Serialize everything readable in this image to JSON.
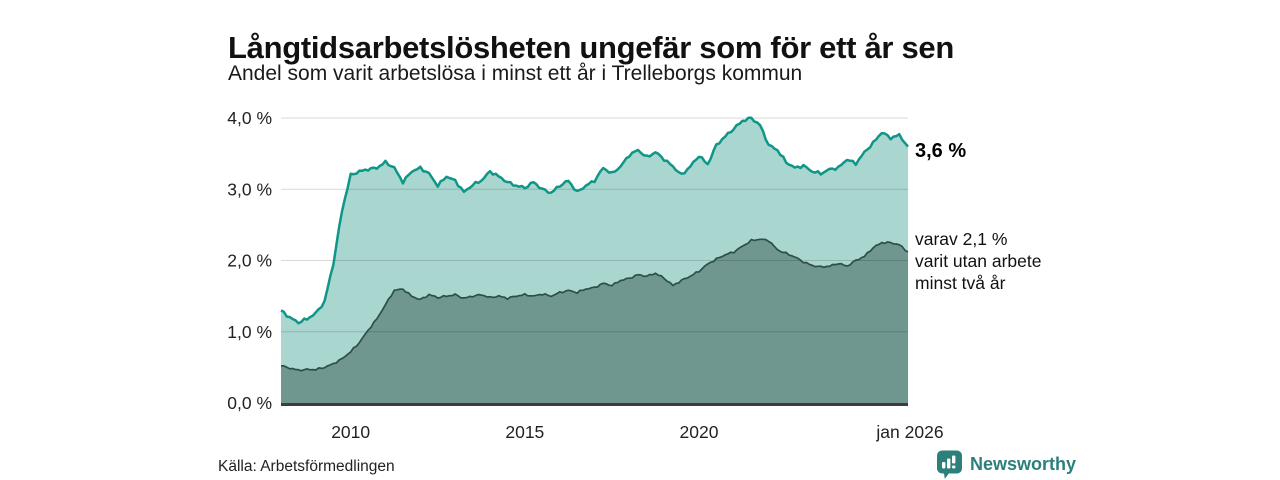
{
  "header": {
    "title": "Långtidsarbetslösheten ungefär som för ett år sen",
    "subtitle": "Andel som varit arbetslösa i minst ett år i Trelleborgs kommun"
  },
  "annotations": {
    "total_end_label": "3,6 %",
    "secondary_end_label": "varav 2,1 %\nvarit utan arbete\nminst två år"
  },
  "footer": {
    "source": "Källa: Arbetsförmedlingen",
    "brand": "Newsworthy"
  },
  "colors": {
    "total_fill": "#a9d6cf",
    "total_stroke": "#0f9688",
    "secondary_fill": "#6f968f",
    "secondary_stroke": "#2e4f49",
    "gridline": "rgba(0,0,0,0.15)",
    "baseline": "#3d3d3d",
    "axis_text": "#222222",
    "brand": "#2c7f7a"
  },
  "chart_data": {
    "type": "area",
    "title": "Långtidsarbetslösheten ungefär som för ett år sen",
    "subtitle": "Andel som varit arbetslösa i minst ett år i Trelleborgs kommun",
    "unit": "%",
    "grid": true,
    "xlim": [
      2008,
      2026
    ],
    "ylim": [
      0,
      4
    ],
    "x_step": 0.25,
    "yticks": [
      {
        "value": 4,
        "label": "4,0 %"
      },
      {
        "value": 3,
        "label": "3,0 %"
      },
      {
        "value": 2,
        "label": "2,0 %"
      },
      {
        "value": 1,
        "label": "1,0 %"
      },
      {
        "value": 0,
        "label": "0,0 %"
      }
    ],
    "xticks": [
      {
        "value": 2010,
        "label": "2010"
      },
      {
        "value": 2015,
        "label": "2015"
      },
      {
        "value": 2020,
        "label": "2020"
      },
      {
        "value": 2026,
        "label": "jan 2026"
      }
    ],
    "series": [
      {
        "name": "Andel som varit arbetslösa i minst ett år",
        "end_value": 3.6,
        "values": [
          1.3,
          1.2,
          1.13,
          1.18,
          1.26,
          1.42,
          1.95,
          2.7,
          3.2,
          3.25,
          3.28,
          3.3,
          3.38,
          3.3,
          3.1,
          3.25,
          3.3,
          3.22,
          3.05,
          3.18,
          3.12,
          2.96,
          3.06,
          3.12,
          3.25,
          3.18,
          3.1,
          3.05,
          3.02,
          3.1,
          3.0,
          2.95,
          3.05,
          3.12,
          2.96,
          3.05,
          3.12,
          3.3,
          3.22,
          3.32,
          3.48,
          3.55,
          3.45,
          3.52,
          3.42,
          3.32,
          3.2,
          3.32,
          3.47,
          3.35,
          3.62,
          3.74,
          3.85,
          3.96,
          4.0,
          3.9,
          3.62,
          3.55,
          3.38,
          3.3,
          3.33,
          3.25,
          3.22,
          3.28,
          3.3,
          3.42,
          3.36,
          3.52,
          3.65,
          3.8,
          3.72,
          3.76,
          3.6
        ]
      },
      {
        "name": "varav utan arbete minst två år",
        "end_value": 2.1,
        "values": [
          0.52,
          0.49,
          0.46,
          0.47,
          0.47,
          0.5,
          0.55,
          0.62,
          0.72,
          0.85,
          1.02,
          1.18,
          1.38,
          1.58,
          1.6,
          1.5,
          1.45,
          1.52,
          1.48,
          1.5,
          1.52,
          1.47,
          1.5,
          1.52,
          1.48,
          1.5,
          1.47,
          1.5,
          1.52,
          1.5,
          1.53,
          1.5,
          1.55,
          1.58,
          1.55,
          1.6,
          1.62,
          1.68,
          1.65,
          1.72,
          1.75,
          1.8,
          1.78,
          1.82,
          1.75,
          1.65,
          1.72,
          1.78,
          1.85,
          1.95,
          2.02,
          2.08,
          2.12,
          2.2,
          2.28,
          2.3,
          2.28,
          2.15,
          2.1,
          2.05,
          1.98,
          1.93,
          1.91,
          1.92,
          1.96,
          1.92,
          2.0,
          2.06,
          2.18,
          2.25,
          2.25,
          2.22,
          2.12
        ]
      }
    ]
  }
}
